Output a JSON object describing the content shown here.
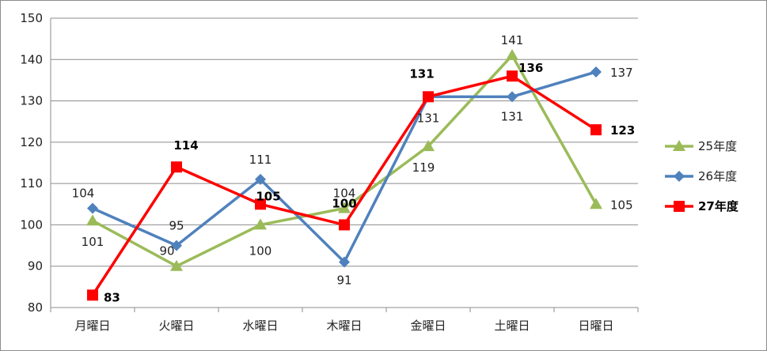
{
  "chart_data": {
    "type": "line",
    "categories": [
      "月曜日",
      "火曜日",
      "水曜日",
      "木曜日",
      "金曜日",
      "土曜日",
      "日曜日"
    ],
    "ylim": [
      80,
      150
    ],
    "yticks": [
      "80",
      "90",
      "100",
      "110",
      "120",
      "130",
      "140",
      "150"
    ],
    "grid": true,
    "legend_position": "right",
    "series": [
      {
        "name": "25年度",
        "color": "#9BBB59",
        "marker": "triangle",
        "values": [
          101,
          90,
          100,
          104,
          119,
          141,
          105
        ],
        "labels": [
          "101",
          "90",
          "100",
          "104",
          "119",
          "141",
          "105"
        ]
      },
      {
        "name": "26年度",
        "color": "#4F81BD",
        "marker": "diamond",
        "values": [
          104,
          95,
          111,
          91,
          131,
          131,
          137
        ],
        "labels": [
          "104",
          "95",
          "111",
          "91",
          "131",
          "131",
          "137"
        ]
      },
      {
        "name": "27年度",
        "color": "#FF0000",
        "marker": "square",
        "bold": true,
        "values": [
          83,
          114,
          105,
          100,
          131,
          136,
          123
        ],
        "labels": [
          "83",
          "114",
          "105",
          "100",
          "131",
          "136",
          "123"
        ]
      }
    ]
  }
}
